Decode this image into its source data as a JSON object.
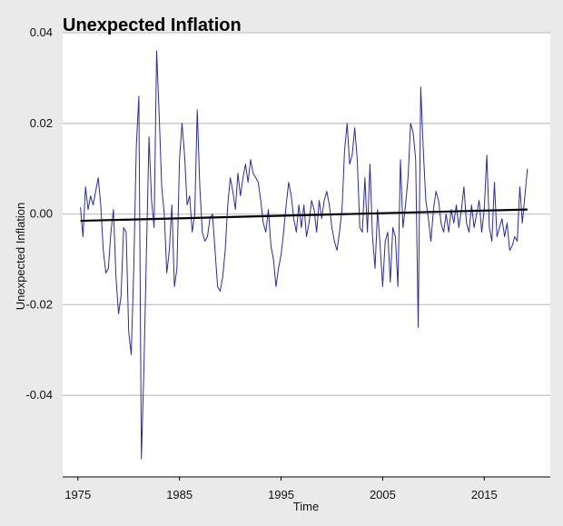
{
  "chart_data": {
    "type": "line",
    "title": "Unexpected Inflation",
    "xlabel": "Time",
    "ylabel": "Unexpected Inflation",
    "xlim": [
      1973.5,
      2021.5
    ],
    "ylim": [
      -0.058,
      0.04
    ],
    "x_ticks": [
      1975,
      1985,
      1995,
      2005,
      2015
    ],
    "x_tick_labels": [
      "1975",
      "1985",
      "1995",
      "2005",
      "2015"
    ],
    "y_ticks": [
      0.04,
      0.02,
      0.0,
      -0.02,
      -0.04
    ],
    "y_tick_labels": [
      "0.04",
      "0.02",
      "0.00",
      "-0.02",
      "-0.04"
    ],
    "grid": "horizontal",
    "legend": "none",
    "colors": {
      "series": "#2a2aa8",
      "trend": "#000000",
      "plot_bg": "#ffffff",
      "grid": "#c6c6c6"
    },
    "series": [
      {
        "values": [
          [
            1975.25,
            0.0015
          ],
          [
            1975.5,
            -0.005
          ],
          [
            1975.75,
            0.006
          ],
          [
            1976.0,
            0.001
          ],
          [
            1976.25,
            0.004
          ],
          [
            1976.5,
            0.002
          ],
          [
            1976.75,
            0.005
          ],
          [
            1977.0,
            0.008
          ],
          [
            1977.25,
            0.002
          ],
          [
            1977.5,
            -0.008
          ],
          [
            1977.75,
            -0.013
          ],
          [
            1978.0,
            -0.012
          ],
          [
            1978.25,
            -0.004
          ],
          [
            1978.5,
            0.001
          ],
          [
            1978.75,
            -0.014
          ],
          [
            1979.0,
            -0.022
          ],
          [
            1979.25,
            -0.018
          ],
          [
            1979.5,
            -0.003
          ],
          [
            1979.75,
            -0.004
          ],
          [
            1980.0,
            -0.026
          ],
          [
            1980.25,
            -0.031
          ],
          [
            1980.5,
            -0.012
          ],
          [
            1980.75,
            0.015
          ],
          [
            1981.0,
            0.026
          ],
          [
            1981.25,
            -0.054
          ],
          [
            1981.5,
            -0.034
          ],
          [
            1981.75,
            -0.008
          ],
          [
            1982.0,
            0.017
          ],
          [
            1982.25,
            0.003
          ],
          [
            1982.5,
            -0.003
          ],
          [
            1982.75,
            0.036
          ],
          [
            1983.0,
            0.022
          ],
          [
            1983.25,
            0.006
          ],
          [
            1983.5,
            0.0
          ],
          [
            1983.75,
            -0.013
          ],
          [
            1984.0,
            -0.008
          ],
          [
            1984.25,
            0.002
          ],
          [
            1984.5,
            -0.016
          ],
          [
            1984.75,
            -0.012
          ],
          [
            1985.0,
            0.012
          ],
          [
            1985.25,
            0.02
          ],
          [
            1985.5,
            0.013
          ],
          [
            1985.75,
            0.002
          ],
          [
            1986.0,
            0.004
          ],
          [
            1986.25,
            -0.004
          ],
          [
            1986.5,
            0.0
          ],
          [
            1986.75,
            0.023
          ],
          [
            1987.0,
            0.006
          ],
          [
            1987.25,
            -0.004
          ],
          [
            1987.5,
            -0.006
          ],
          [
            1987.75,
            -0.005
          ],
          [
            1988.0,
            -0.001
          ],
          [
            1988.25,
            0.0
          ],
          [
            1988.5,
            -0.008
          ],
          [
            1988.75,
            -0.016
          ],
          [
            1989.0,
            -0.017
          ],
          [
            1989.25,
            -0.014
          ],
          [
            1989.5,
            -0.008
          ],
          [
            1989.75,
            0.002
          ],
          [
            1990.0,
            0.008
          ],
          [
            1990.25,
            0.005
          ],
          [
            1990.5,
            0.001
          ],
          [
            1990.75,
            0.009
          ],
          [
            1991.0,
            0.004
          ],
          [
            1991.25,
            0.008
          ],
          [
            1991.5,
            0.011
          ],
          [
            1991.75,
            0.007
          ],
          [
            1992.0,
            0.012
          ],
          [
            1992.25,
            0.009
          ],
          [
            1992.5,
            0.008
          ],
          [
            1992.75,
            0.007
          ],
          [
            1993.0,
            0.003
          ],
          [
            1993.25,
            -0.002
          ],
          [
            1993.5,
            -0.004
          ],
          [
            1993.75,
            0.001
          ],
          [
            1994.0,
            -0.007
          ],
          [
            1994.25,
            -0.01
          ],
          [
            1994.5,
            -0.016
          ],
          [
            1994.75,
            -0.012
          ],
          [
            1995.0,
            -0.009
          ],
          [
            1995.25,
            -0.004
          ],
          [
            1995.5,
            0.002
          ],
          [
            1995.75,
            0.007
          ],
          [
            1996.0,
            0.004
          ],
          [
            1996.25,
            -0.001
          ],
          [
            1996.5,
            -0.004
          ],
          [
            1996.75,
            0.002
          ],
          [
            1997.0,
            -0.003
          ],
          [
            1997.25,
            0.002
          ],
          [
            1997.5,
            -0.005
          ],
          [
            1997.75,
            -0.002
          ],
          [
            1998.0,
            0.003
          ],
          [
            1998.25,
            0.001
          ],
          [
            1998.5,
            -0.004
          ],
          [
            1998.75,
            0.003
          ],
          [
            1999.0,
            -0.001
          ],
          [
            1999.25,
            0.003
          ],
          [
            1999.5,
            0.005
          ],
          [
            1999.75,
            0.002
          ],
          [
            2000.0,
            -0.003
          ],
          [
            2000.25,
            -0.006
          ],
          [
            2000.5,
            -0.008
          ],
          [
            2000.75,
            -0.004
          ],
          [
            2001.0,
            0.001
          ],
          [
            2001.25,
            0.014
          ],
          [
            2001.5,
            0.02
          ],
          [
            2001.75,
            0.011
          ],
          [
            2002.0,
            0.013
          ],
          [
            2002.25,
            0.019
          ],
          [
            2002.5,
            0.012
          ],
          [
            2002.75,
            -0.003
          ],
          [
            2003.0,
            -0.004
          ],
          [
            2003.25,
            0.008
          ],
          [
            2003.5,
            -0.004
          ],
          [
            2003.75,
            0.011
          ],
          [
            2004.0,
            -0.005
          ],
          [
            2004.25,
            -0.012
          ],
          [
            2004.5,
            0.001
          ],
          [
            2004.75,
            -0.007
          ],
          [
            2005.0,
            -0.016
          ],
          [
            2005.25,
            -0.006
          ],
          [
            2005.5,
            -0.004
          ],
          [
            2005.75,
            -0.015
          ],
          [
            2006.0,
            -0.003
          ],
          [
            2006.25,
            -0.005
          ],
          [
            2006.5,
            -0.016
          ],
          [
            2006.75,
            0.012
          ],
          [
            2007.0,
            -0.003
          ],
          [
            2007.25,
            0.002
          ],
          [
            2007.5,
            0.008
          ],
          [
            2007.75,
            0.02
          ],
          [
            2008.0,
            0.018
          ],
          [
            2008.25,
            0.012
          ],
          [
            2008.5,
            -0.025
          ],
          [
            2008.75,
            0.028
          ],
          [
            2009.0,
            0.014
          ],
          [
            2009.25,
            0.003
          ],
          [
            2009.5,
            -0.001
          ],
          [
            2009.75,
            -0.006
          ],
          [
            2010.0,
            0.001
          ],
          [
            2010.25,
            0.005
          ],
          [
            2010.5,
            0.003
          ],
          [
            2010.75,
            -0.002
          ],
          [
            2011.0,
            -0.004
          ],
          [
            2011.25,
            0.0
          ],
          [
            2011.5,
            -0.004
          ],
          [
            2011.75,
            0.001
          ],
          [
            2012.0,
            -0.002
          ],
          [
            2012.25,
            0.002
          ],
          [
            2012.5,
            -0.003
          ],
          [
            2012.75,
            0.001
          ],
          [
            2013.0,
            0.006
          ],
          [
            2013.25,
            -0.002
          ],
          [
            2013.5,
            -0.004
          ],
          [
            2013.75,
            0.002
          ],
          [
            2014.0,
            -0.003
          ],
          [
            2014.25,
            0.0
          ],
          [
            2014.5,
            0.003
          ],
          [
            2014.75,
            -0.004
          ],
          [
            2015.0,
            0.001
          ],
          [
            2015.25,
            0.013
          ],
          [
            2015.5,
            -0.003
          ],
          [
            2015.75,
            -0.006
          ],
          [
            2016.0,
            0.007
          ],
          [
            2016.25,
            -0.005
          ],
          [
            2016.5,
            -0.003
          ],
          [
            2016.75,
            -0.001
          ],
          [
            2017.0,
            -0.005
          ],
          [
            2017.25,
            -0.002
          ],
          [
            2017.5,
            -0.008
          ],
          [
            2017.75,
            -0.007
          ],
          [
            2018.0,
            -0.005
          ],
          [
            2018.25,
            -0.006
          ],
          [
            2018.5,
            0.006
          ],
          [
            2018.75,
            -0.002
          ],
          [
            2019.0,
            0.004
          ],
          [
            2019.25,
            0.01
          ]
        ]
      }
    ],
    "trend_line": [
      [
        1975.25,
        -0.0015
      ],
      [
        2019.25,
        0.001
      ]
    ]
  }
}
